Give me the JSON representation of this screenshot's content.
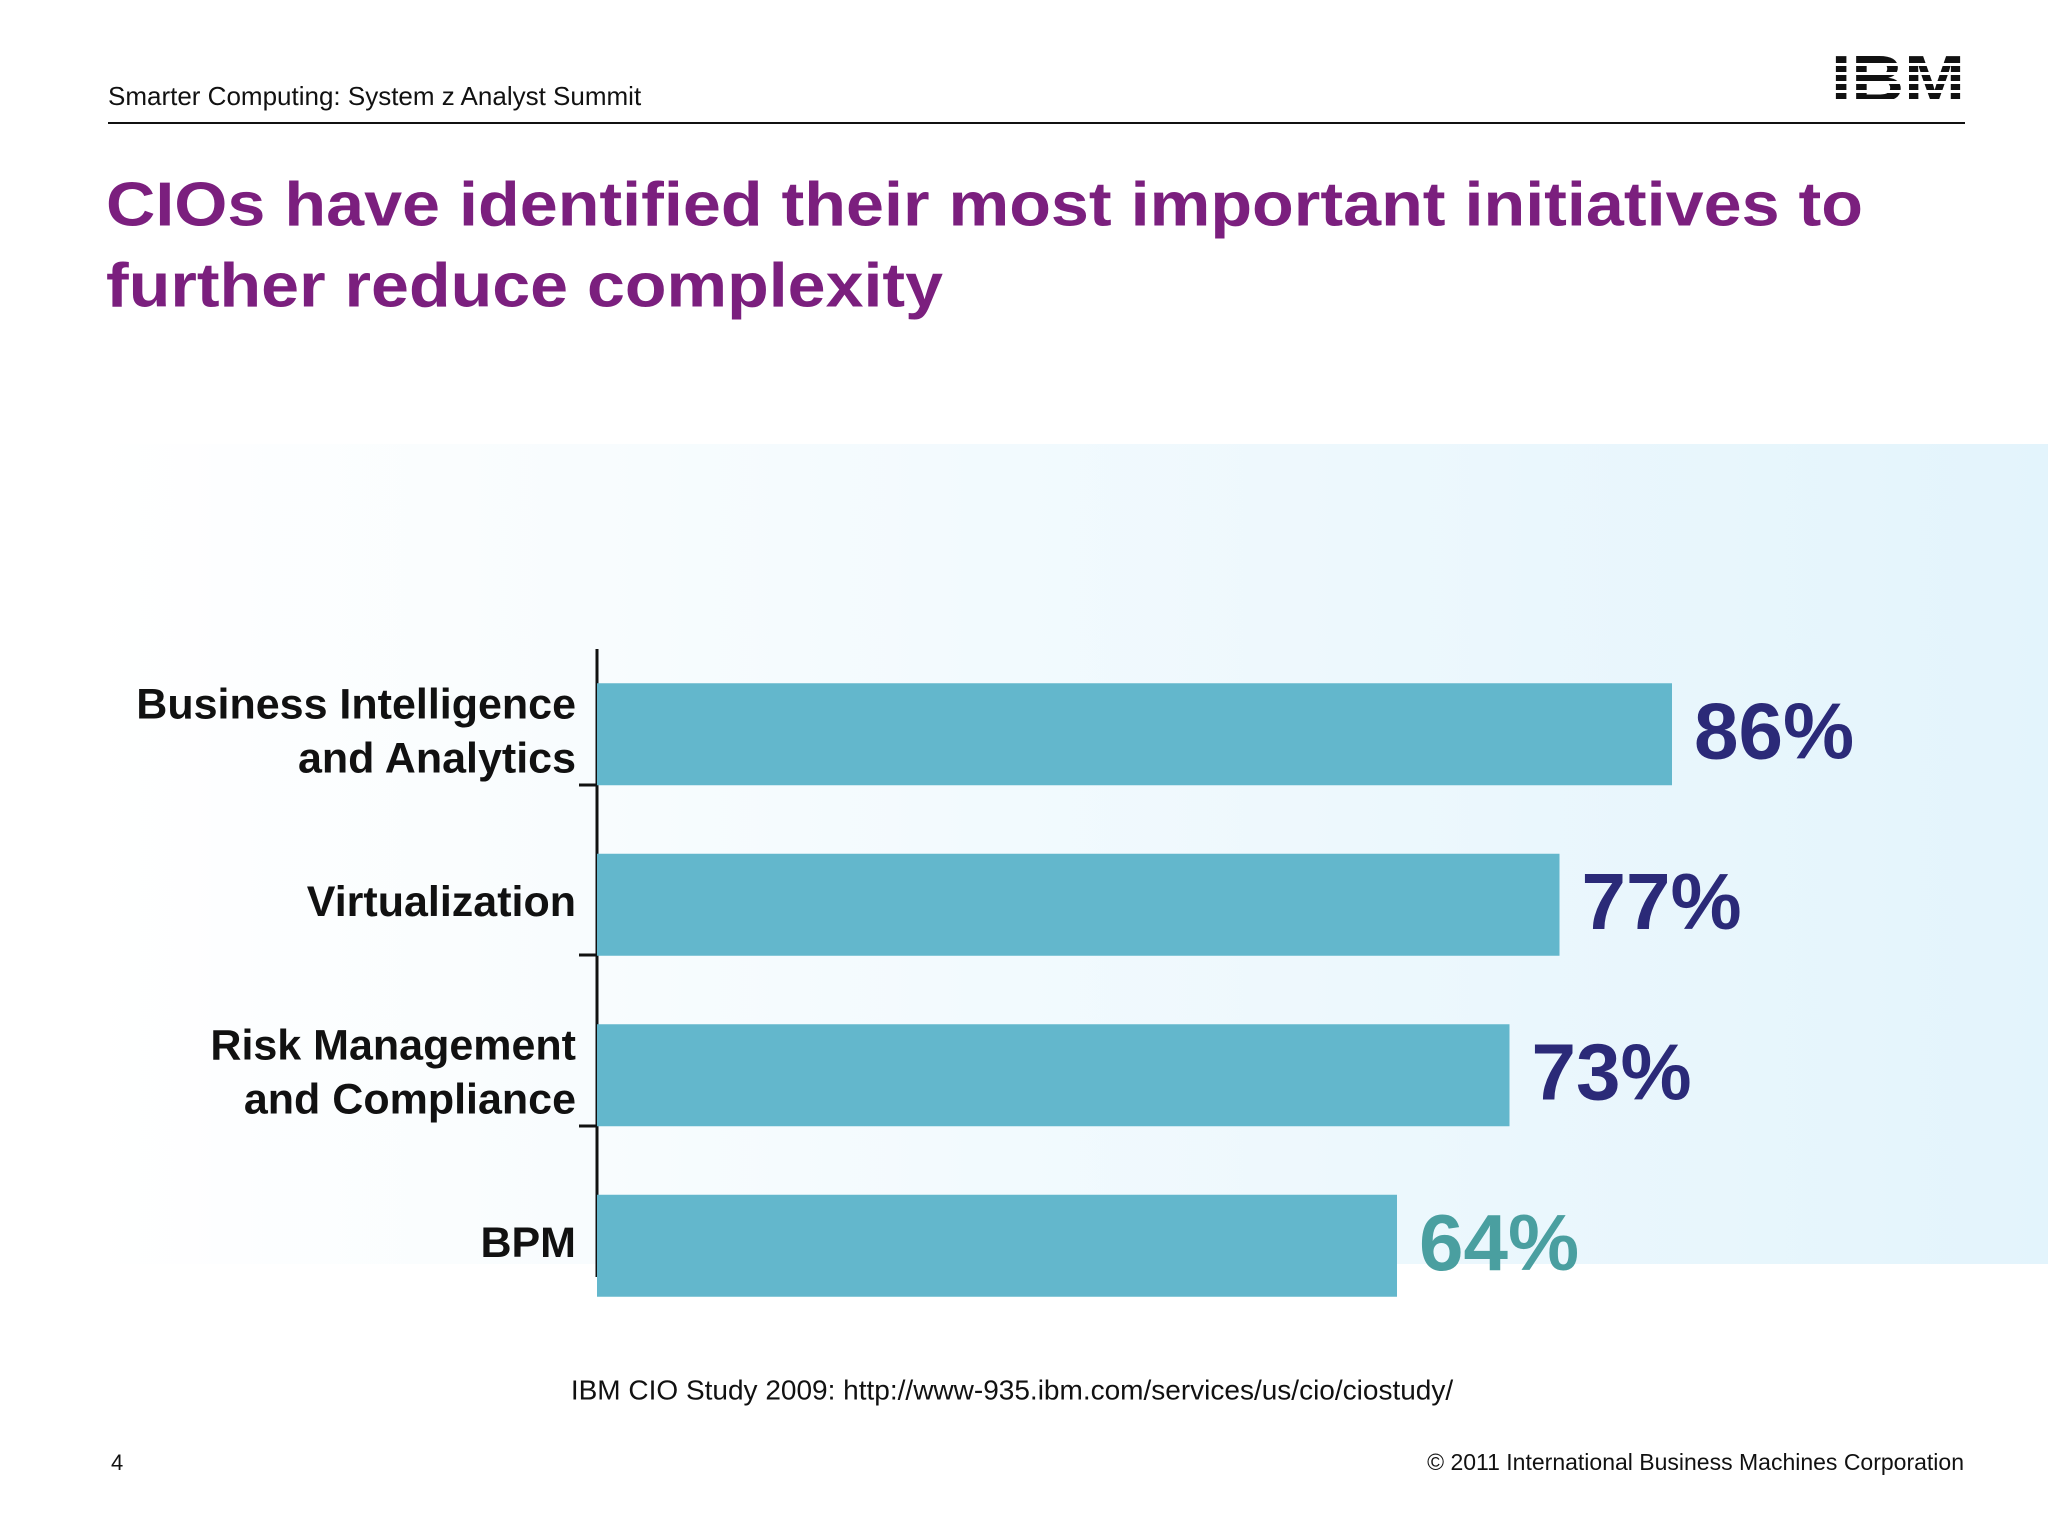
{
  "header": {
    "subtitle": "Smarter Computing: System z Analyst Summit",
    "logo": "IBM"
  },
  "chart_data": {
    "type": "hbar",
    "title": [
      "CIOs have identified their most important initiatives to",
      "further reduce complexity"
    ],
    "categories": [
      [
        "Business Intelligence",
        "and Analytics"
      ],
      [
        "Virtualization"
      ],
      [
        "Risk Management",
        "and Compliance"
      ],
      [
        "BPM"
      ]
    ],
    "values": [
      86,
      77,
      73,
      64
    ],
    "value_labels": [
      "86%",
      "77%",
      "73%",
      "64%"
    ],
    "color": "#63b7cc",
    "label_colors": [
      "#2b2a78",
      "#2b2a78",
      "#2b2a78",
      "#4a9fa0"
    ],
    "xlim": [
      0,
      100
    ],
    "source": "IBM CIO Study 2009: http://www-935.ibm.com/services/us/cio/ciostudy/"
  },
  "footer": {
    "page": "4",
    "copyright": "© 2011 International Business Machines Corporation"
  }
}
